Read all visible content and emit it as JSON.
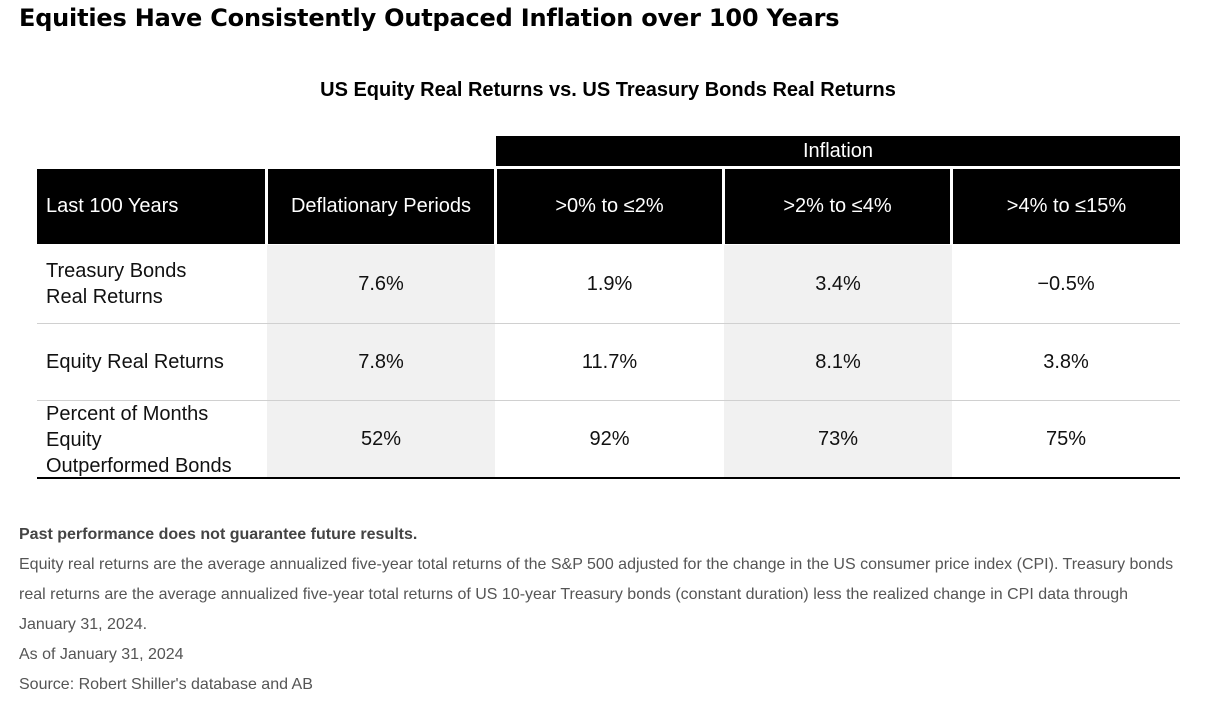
{
  "page": {
    "title": "Equities Have Consistently Outpaced Inflation over 100 Years"
  },
  "chart_data": {
    "type": "table",
    "title": "US Equity Real Returns vs. US Treasury Bonds Real Returns",
    "group_header": "Inflation",
    "columns": [
      "Last 100 Years",
      "Deflationary Periods",
      ">0% to ≤2%",
      ">2% to ≤4%",
      ">4% to ≤15%"
    ],
    "rows": [
      {
        "label": "Treasury Bonds\nReal Returns",
        "values": [
          "7.6%",
          "1.9%",
          "3.4%",
          "−0.5%"
        ]
      },
      {
        "label": "Equity Real Returns",
        "values": [
          "7.8%",
          "11.7%",
          "8.1%",
          "3.8%"
        ]
      },
      {
        "label": "Percent of Months Equity\nOutperformed Bonds",
        "values": [
          "52%",
          "92%",
          "73%",
          "75%"
        ]
      }
    ],
    "colors": {
      "header_bg": "#000000",
      "header_text": "#ffffff",
      "shaded_column": "#f1f1f1"
    }
  },
  "footnotes": {
    "disclaimer": "Past performance does not guarantee future results.",
    "definition": "Equity real returns are the average annualized five-year total returns of the S&P 500 adjusted for the change in the US consumer price index (CPI). Treasury bonds real returns are the average annualized five-year total returns of US 10-year Treasury bonds (constant duration) less the realized change in CPI data through January 31, 2024.",
    "as_of": "As of January 31, 2024",
    "source": "Source: Robert Shiller's database and AB"
  }
}
